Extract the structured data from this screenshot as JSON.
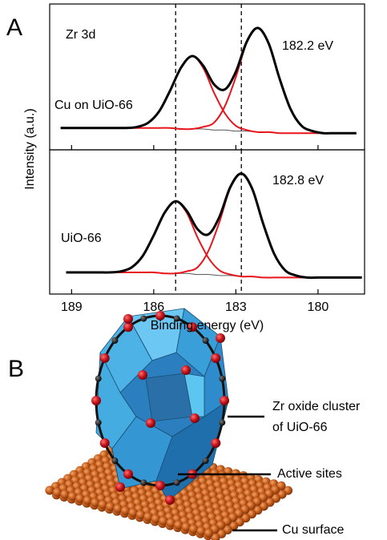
{
  "chart_data": [
    {
      "type": "line",
      "ylabel": "Intensity (a.u.)",
      "annotations": [
        "Zr 3d",
        "182.2 eV",
        "Cu on UiO-66"
      ],
      "xlim": [
        189.8,
        178.3
      ],
      "ylim": [
        -0.15,
        1.25
      ],
      "vlines": [
        185.2,
        182.8
      ],
      "x": [
        189.4,
        189.0,
        188.6,
        188.2,
        187.8,
        187.4,
        187.0,
        186.6,
        186.2,
        185.8,
        185.4,
        185.0,
        184.6,
        184.2,
        183.8,
        183.4,
        183.0,
        182.6,
        182.2,
        181.8,
        181.4,
        181.0,
        180.6,
        180.2,
        179.8,
        179.4,
        179.0,
        178.6
      ],
      "series": [
        {
          "color": "#555555",
          "values": [
            0.06,
            0.06,
            0.06,
            0.06,
            0.06,
            0.06,
            0.06,
            0.06,
            0.06,
            0.06,
            0.06,
            0.05,
            0.05,
            0.05,
            0.04,
            0.04,
            0.03,
            0.03,
            0.02,
            0.02,
            0.01,
            0.01,
            0.01,
            0.01,
            0.01,
            0.01,
            0.01,
            0.01
          ]
        },
        {
          "color": "#e8141c",
          "values": [
            0.06,
            0.06,
            0.06,
            0.06,
            0.06,
            0.06,
            0.06,
            0.07,
            0.11,
            0.22,
            0.42,
            0.64,
            0.75,
            0.64,
            0.4,
            0.2,
            0.08,
            0.04,
            0.02,
            0.02,
            0.01,
            0.01,
            0.01,
            0.01,
            0.01,
            0.01,
            0.01,
            0.01
          ]
        },
        {
          "color": "#e8141c",
          "values": [
            0.06,
            0.06,
            0.06,
            0.06,
            0.06,
            0.06,
            0.06,
            0.06,
            0.06,
            0.06,
            0.06,
            0.05,
            0.05,
            0.07,
            0.11,
            0.27,
            0.55,
            0.88,
            1.02,
            0.87,
            0.53,
            0.24,
            0.08,
            0.03,
            0.01,
            0.01,
            0.01,
            0.01
          ]
        },
        {
          "color": "#000000",
          "values": [
            0.06,
            0.06,
            0.06,
            0.06,
            0.06,
            0.06,
            0.06,
            0.07,
            0.11,
            0.22,
            0.42,
            0.64,
            0.75,
            0.66,
            0.48,
            0.43,
            0.6,
            0.89,
            1.02,
            0.87,
            0.53,
            0.24,
            0.08,
            0.03,
            0.01,
            0.01,
            0.01,
            0.01
          ]
        }
      ]
    },
    {
      "type": "line",
      "xlabel": "Binding energy (eV)",
      "annotations": [
        "182.8 eV",
        "UiO-66"
      ],
      "xlim": [
        189.8,
        178.3
      ],
      "ylim": [
        -0.15,
        1.25
      ],
      "xticks": [
        189,
        186,
        183,
        180
      ],
      "vlines": [
        185.2,
        182.8
      ],
      "x": [
        189.2,
        188.8,
        188.4,
        188.0,
        187.6,
        187.2,
        186.8,
        186.4,
        186.0,
        185.6,
        185.2,
        184.8,
        184.4,
        184.0,
        183.6,
        183.2,
        182.8,
        182.4,
        182.0,
        181.6,
        181.2,
        180.8,
        180.4,
        180.0,
        179.6,
        179.2,
        178.8,
        178.4
      ],
      "series": [
        {
          "color": "#555555",
          "values": [
            0.06,
            0.06,
            0.06,
            0.06,
            0.06,
            0.06,
            0.06,
            0.06,
            0.06,
            0.05,
            0.05,
            0.05,
            0.04,
            0.04,
            0.03,
            0.03,
            0.02,
            0.02,
            0.01,
            0.01,
            0.01,
            0.01,
            0.01,
            0.01,
            0.01,
            0.01,
            0.01,
            0.01
          ]
        },
        {
          "color": "#e8141c",
          "values": [
            0.06,
            0.06,
            0.06,
            0.06,
            0.06,
            0.07,
            0.11,
            0.22,
            0.42,
            0.64,
            0.75,
            0.64,
            0.4,
            0.2,
            0.08,
            0.04,
            0.02,
            0.02,
            0.01,
            0.01,
            0.01,
            0.01,
            0.01,
            0.01,
            0.01,
            0.01,
            0.01,
            0.01
          ]
        },
        {
          "color": "#e8141c",
          "values": [
            0.06,
            0.06,
            0.06,
            0.06,
            0.06,
            0.06,
            0.06,
            0.06,
            0.06,
            0.05,
            0.05,
            0.07,
            0.11,
            0.27,
            0.55,
            0.88,
            1.02,
            0.87,
            0.53,
            0.24,
            0.08,
            0.03,
            0.01,
            0.01,
            0.01,
            0.01,
            0.01,
            0.01
          ]
        },
        {
          "color": "#000000",
          "values": [
            0.06,
            0.06,
            0.06,
            0.06,
            0.06,
            0.07,
            0.11,
            0.22,
            0.42,
            0.64,
            0.75,
            0.66,
            0.48,
            0.43,
            0.6,
            0.89,
            1.02,
            0.87,
            0.53,
            0.24,
            0.08,
            0.03,
            0.01,
            0.01,
            0.01,
            0.01,
            0.01,
            0.01
          ]
        }
      ]
    }
  ],
  "panel_labels": [
    "A",
    "B"
  ],
  "illustration": {
    "cluster_label": [
      "Zr oxide cluster",
      "of UiO-66"
    ],
    "sites_label": "Active sites",
    "surface_label": "Cu surface"
  }
}
